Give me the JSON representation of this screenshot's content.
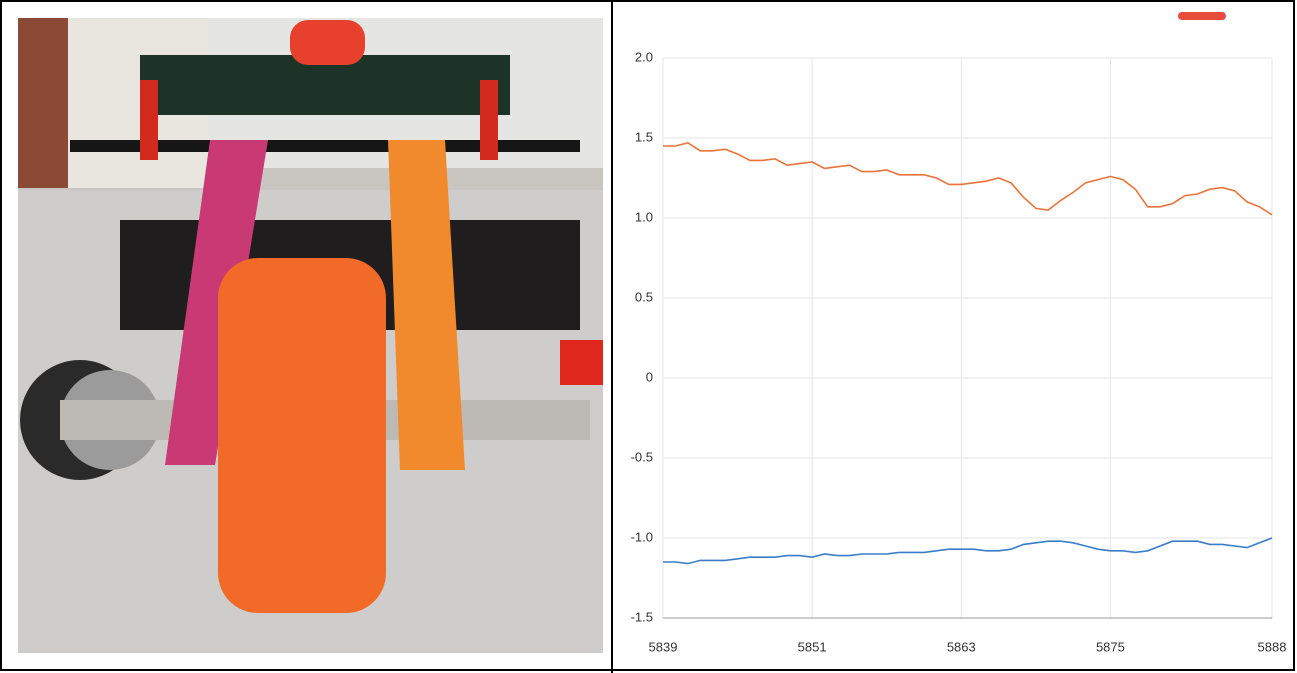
{
  "chart_data": {
    "type": "line",
    "x": [
      5839,
      5840,
      5841,
      5842,
      5843,
      5844,
      5845,
      5846,
      5847,
      5848,
      5849,
      5850,
      5851,
      5852,
      5853,
      5854,
      5855,
      5856,
      5857,
      5858,
      5859,
      5860,
      5861,
      5862,
      5863,
      5864,
      5865,
      5866,
      5867,
      5868,
      5869,
      5870,
      5871,
      5872,
      5873,
      5874,
      5875,
      5876,
      5877,
      5878,
      5879,
      5880,
      5881,
      5882,
      5883,
      5884,
      5885,
      5886,
      5887,
      5888
    ],
    "series": [
      {
        "color": "#e8743b",
        "values": [
          1.45,
          1.45,
          1.47,
          1.42,
          1.42,
          1.43,
          1.4,
          1.36,
          1.36,
          1.37,
          1.33,
          1.34,
          1.35,
          1.31,
          1.32,
          1.33,
          1.29,
          1.29,
          1.3,
          1.27,
          1.27,
          1.27,
          1.25,
          1.21,
          1.21,
          1.22,
          1.23,
          1.25,
          1.22,
          1.13,
          1.06,
          1.05,
          1.11,
          1.16,
          1.22,
          1.24,
          1.26,
          1.24,
          1.18,
          1.07,
          1.07,
          1.09,
          1.14,
          1.15,
          1.18,
          1.19,
          1.17,
          1.1,
          1.07,
          1.02
        ]
      },
      {
        "color": "#3a7dc9",
        "values": [
          -1.15,
          -1.15,
          -1.16,
          -1.14,
          -1.14,
          -1.14,
          -1.13,
          -1.12,
          -1.12,
          -1.12,
          -1.11,
          -1.11,
          -1.12,
          -1.1,
          -1.11,
          -1.11,
          -1.1,
          -1.1,
          -1.1,
          -1.09,
          -1.09,
          -1.09,
          -1.08,
          -1.07,
          -1.07,
          -1.07,
          -1.08,
          -1.08,
          -1.07,
          -1.04,
          -1.03,
          -1.02,
          -1.02,
          -1.03,
          -1.05,
          -1.07,
          -1.08,
          -1.08,
          -1.09,
          -1.08,
          -1.05,
          -1.02,
          -1.02,
          -1.02,
          -1.04,
          -1.04,
          -1.05,
          -1.06,
          -1.03,
          -1.0
        ]
      }
    ],
    "xlim": [
      5839,
      5888
    ],
    "xticks": [
      5839,
      5851,
      5863,
      5875,
      5888
    ],
    "ylim": [
      -1.5,
      2.0
    ],
    "yticks": [
      {
        "value": 2.0,
        "label": "2.0"
      },
      1.5,
      {
        "value": 1.0,
        "label": "1.0"
      },
      0.5,
      0,
      -0.5,
      {
        "value": -1.0,
        "label": "-1.0"
      },
      -1.5
    ],
    "grid": true
  }
}
